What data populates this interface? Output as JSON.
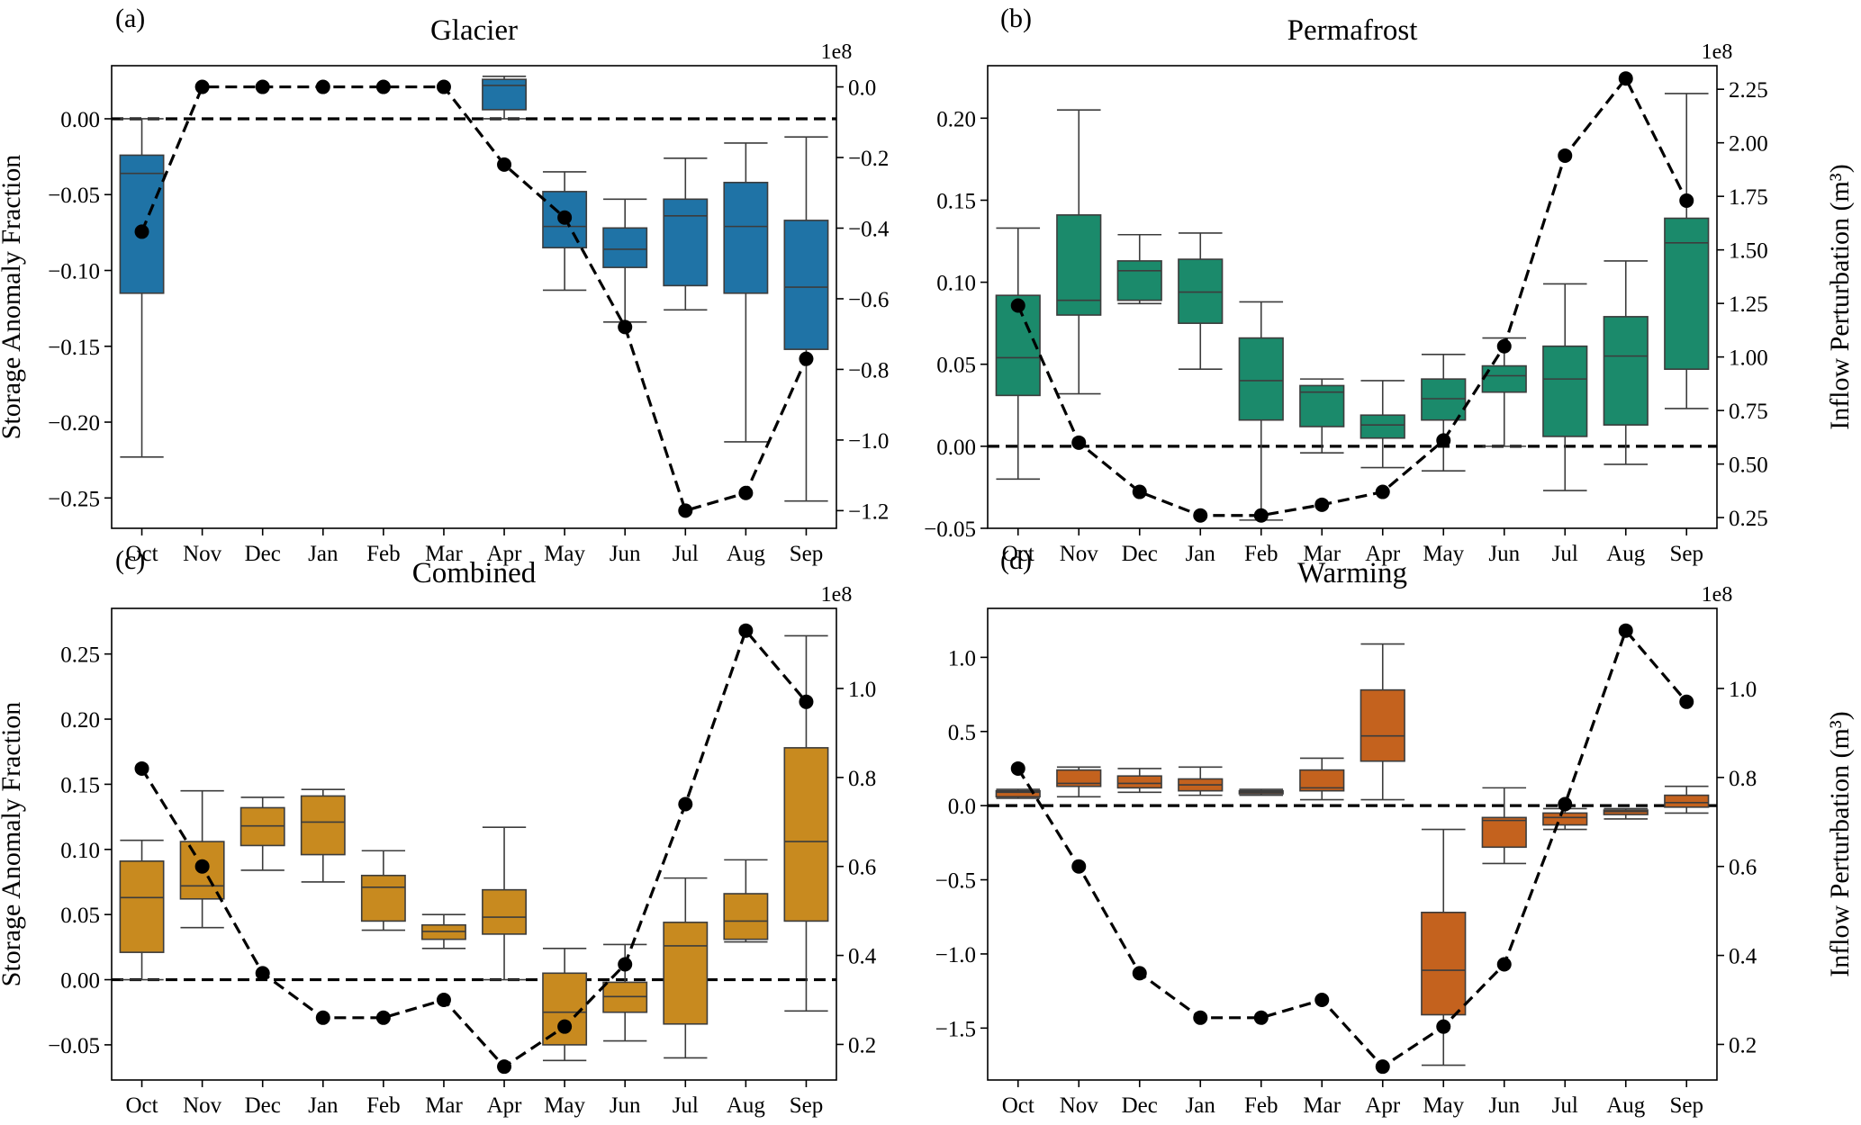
{
  "chart_data": [
    {
      "type": "box+line",
      "panel_label": "(a)",
      "title": "Glacier",
      "ylabel": "Storage Anomaly Fraction",
      "ylabel2": "",
      "secondary_axis_multiplier": "1e8",
      "categories": [
        "Oct",
        "Nov",
        "Dec",
        "Jan",
        "Feb",
        "Mar",
        "Apr",
        "May",
        "Jun",
        "Jul",
        "Aug",
        "Sep"
      ],
      "ylim": [
        -0.27,
        0.035
      ],
      "y_ticks": [
        {
          "value": 0.0,
          "label": "0.00"
        },
        {
          "value": -0.05,
          "label": "−0.05"
        },
        {
          "value": -0.1,
          "label": "−0.10"
        },
        {
          "value": -0.15,
          "label": "−0.15"
        },
        {
          "value": -0.2,
          "label": "−0.20"
        },
        {
          "value": -0.25,
          "label": "−0.25"
        }
      ],
      "y2lim": [
        -1.25,
        0.06
      ],
      "y2_ticks": [
        {
          "value": 0.0,
          "label": "0.0"
        },
        {
          "value": -0.2,
          "label": "−0.2"
        },
        {
          "value": -0.4,
          "label": "−0.4"
        },
        {
          "value": -0.6,
          "label": "−0.6"
        },
        {
          "value": -0.8,
          "label": "−0.8"
        },
        {
          "value": -1.0,
          "label": "−1.0"
        },
        {
          "value": -1.2,
          "label": "−1.2"
        }
      ],
      "reference_line": 0.0,
      "color": "#1f73a6",
      "boxes": [
        {
          "category": "Oct",
          "whislo": -0.223,
          "q1": -0.115,
          "med": -0.036,
          "q3": -0.024,
          "whishi": 0.0
        },
        null,
        null,
        null,
        null,
        null,
        {
          "category": "Apr",
          "whislo": 0.0,
          "q1": 0.006,
          "med": 0.022,
          "q3": 0.026,
          "whishi": 0.028
        },
        {
          "category": "May",
          "whislo": -0.113,
          "q1": -0.085,
          "med": -0.071,
          "q3": -0.048,
          "whishi": -0.035
        },
        {
          "category": "Jun",
          "whislo": -0.134,
          "q1": -0.098,
          "med": -0.086,
          "q3": -0.072,
          "whishi": -0.053
        },
        {
          "category": "Jul",
          "whislo": -0.126,
          "q1": -0.11,
          "med": -0.064,
          "q3": -0.053,
          "whishi": -0.026
        },
        {
          "category": "Aug",
          "whislo": -0.213,
          "q1": -0.115,
          "med": -0.071,
          "q3": -0.042,
          "whishi": -0.016
        },
        {
          "category": "Sep",
          "whislo": -0.252,
          "q1": -0.152,
          "med": -0.111,
          "q3": -0.067,
          "whishi": -0.012
        }
      ],
      "line_values": [
        -0.41,
        0.0,
        0.0,
        0.0,
        0.0,
        0.0,
        -0.22,
        -0.37,
        -0.68,
        -1.2,
        -1.15,
        -0.77
      ]
    },
    {
      "type": "box+line",
      "panel_label": "(b)",
      "title": "Permafrost",
      "ylabel": "",
      "ylabel2": "Inflow Perturbation (m³)",
      "secondary_axis_multiplier": "1e8",
      "categories": [
        "Oct",
        "Nov",
        "Dec",
        "Jan",
        "Feb",
        "Mar",
        "Apr",
        "May",
        "Jun",
        "Jul",
        "Aug",
        "Sep"
      ],
      "ylim": [
        -0.05,
        0.232
      ],
      "y_ticks": [
        {
          "value": -0.05,
          "label": "−0.05"
        },
        {
          "value": 0.0,
          "label": "0.00"
        },
        {
          "value": 0.05,
          "label": "0.05"
        },
        {
          "value": 0.1,
          "label": "0.10"
        },
        {
          "value": 0.15,
          "label": "0.15"
        },
        {
          "value": 0.2,
          "label": "0.20"
        }
      ],
      "y2lim": [
        0.2,
        2.36
      ],
      "y2_ticks": [
        {
          "value": 0.25,
          "label": "0.25"
        },
        {
          "value": 0.5,
          "label": "0.50"
        },
        {
          "value": 0.75,
          "label": "0.75"
        },
        {
          "value": 1.0,
          "label": "1.00"
        },
        {
          "value": 1.25,
          "label": "1.25"
        },
        {
          "value": 1.5,
          "label": "1.50"
        },
        {
          "value": 1.75,
          "label": "1.75"
        },
        {
          "value": 2.0,
          "label": "2.00"
        },
        {
          "value": 2.25,
          "label": "2.25"
        }
      ],
      "reference_line": 0.0,
      "color": "#1b8a6b",
      "boxes": [
        {
          "category": "Oct",
          "whislo": -0.02,
          "q1": 0.031,
          "med": 0.054,
          "q3": 0.092,
          "whishi": 0.133
        },
        {
          "category": "Nov",
          "whislo": 0.032,
          "q1": 0.08,
          "med": 0.089,
          "q3": 0.141,
          "whishi": 0.205
        },
        {
          "category": "Dec",
          "whislo": 0.087,
          "q1": 0.089,
          "med": 0.107,
          "q3": 0.113,
          "whishi": 0.129
        },
        {
          "category": "Jan",
          "whislo": 0.047,
          "q1": 0.075,
          "med": 0.094,
          "q3": 0.114,
          "whishi": 0.13
        },
        {
          "category": "Feb",
          "whislo": -0.045,
          "q1": 0.016,
          "med": 0.04,
          "q3": 0.066,
          "whishi": 0.088
        },
        {
          "category": "Mar",
          "whislo": -0.004,
          "q1": 0.012,
          "med": 0.033,
          "q3": 0.037,
          "whishi": 0.041
        },
        {
          "category": "Apr",
          "whislo": -0.013,
          "q1": 0.005,
          "med": 0.013,
          "q3": 0.019,
          "whishi": 0.04
        },
        {
          "category": "May",
          "whislo": -0.015,
          "q1": 0.016,
          "med": 0.029,
          "q3": 0.041,
          "whishi": 0.056
        },
        {
          "category": "Jun",
          "whislo": 0.0,
          "q1": 0.033,
          "med": 0.043,
          "q3": 0.049,
          "whishi": 0.066
        },
        {
          "category": "Jul",
          "whislo": -0.027,
          "q1": 0.006,
          "med": 0.041,
          "q3": 0.061,
          "whishi": 0.099
        },
        {
          "category": "Aug",
          "whislo": -0.011,
          "q1": 0.013,
          "med": 0.055,
          "q3": 0.079,
          "whishi": 0.113
        },
        {
          "category": "Sep",
          "whislo": 0.023,
          "q1": 0.047,
          "med": 0.124,
          "q3": 0.139,
          "whishi": 0.215
        }
      ],
      "line_values": [
        1.24,
        0.6,
        0.37,
        0.26,
        0.26,
        0.31,
        0.37,
        0.61,
        1.05,
        1.94,
        2.3,
        1.73
      ]
    },
    {
      "type": "box+line",
      "panel_label": "(c)",
      "title": "Combined",
      "ylabel": "Storage Anomaly Fraction",
      "ylabel2": "",
      "secondary_axis_multiplier": "1e8",
      "categories": [
        "Oct",
        "Nov",
        "Dec",
        "Jan",
        "Feb",
        "Mar",
        "Apr",
        "May",
        "Jun",
        "Jul",
        "Aug",
        "Sep"
      ],
      "ylim": [
        -0.077,
        0.285
      ],
      "y_ticks": [
        {
          "value": -0.05,
          "label": "−0.05"
        },
        {
          "value": 0.0,
          "label": "0.00"
        },
        {
          "value": 0.05,
          "label": "0.05"
        },
        {
          "value": 0.1,
          "label": "0.10"
        },
        {
          "value": 0.15,
          "label": "0.15"
        },
        {
          "value": 0.2,
          "label": "0.20"
        },
        {
          "value": 0.25,
          "label": "0.25"
        }
      ],
      "y2lim": [
        0.12,
        1.18
      ],
      "y2_ticks": [
        {
          "value": 0.2,
          "label": "0.2"
        },
        {
          "value": 0.4,
          "label": "0.4"
        },
        {
          "value": 0.6,
          "label": "0.6"
        },
        {
          "value": 0.8,
          "label": "0.8"
        },
        {
          "value": 1.0,
          "label": "1.0"
        }
      ],
      "reference_line": 0.0,
      "color": "#c88a1f",
      "boxes": [
        {
          "category": "Oct",
          "whislo": 0.0,
          "q1": 0.021,
          "med": 0.063,
          "q3": 0.091,
          "whishi": 0.107
        },
        {
          "category": "Nov",
          "whislo": 0.04,
          "q1": 0.062,
          "med": 0.072,
          "q3": 0.106,
          "whishi": 0.145
        },
        {
          "category": "Dec",
          "whislo": 0.084,
          "q1": 0.103,
          "med": 0.118,
          "q3": 0.132,
          "whishi": 0.14
        },
        {
          "category": "Jan",
          "whislo": 0.075,
          "q1": 0.096,
          "med": 0.121,
          "q3": 0.141,
          "whishi": 0.146
        },
        {
          "category": "Feb",
          "whislo": 0.038,
          "q1": 0.045,
          "med": 0.071,
          "q3": 0.08,
          "whishi": 0.099
        },
        {
          "category": "Mar",
          "whislo": 0.024,
          "q1": 0.031,
          "med": 0.037,
          "q3": 0.042,
          "whishi": 0.05
        },
        {
          "category": "Apr",
          "whislo": 0.0,
          "q1": 0.035,
          "med": 0.048,
          "q3": 0.069,
          "whishi": 0.117
        },
        {
          "category": "May",
          "whislo": -0.062,
          "q1": -0.05,
          "med": -0.025,
          "q3": 0.005,
          "whishi": 0.024
        },
        {
          "category": "Jun",
          "whislo": -0.047,
          "q1": -0.025,
          "med": -0.013,
          "q3": -0.002,
          "whishi": 0.027
        },
        {
          "category": "Jul",
          "whislo": -0.06,
          "q1": -0.034,
          "med": 0.026,
          "q3": 0.044,
          "whishi": 0.078
        },
        {
          "category": "Aug",
          "whislo": 0.029,
          "q1": 0.031,
          "med": 0.045,
          "q3": 0.066,
          "whishi": 0.092
        },
        {
          "category": "Sep",
          "whislo": -0.024,
          "q1": 0.045,
          "med": 0.106,
          "q3": 0.178,
          "whishi": 0.264
        }
      ],
      "line_values": [
        0.82,
        0.6,
        0.36,
        0.26,
        0.26,
        0.3,
        0.15,
        0.24,
        0.38,
        0.74,
        1.13,
        0.97
      ]
    },
    {
      "type": "box+line",
      "panel_label": "(d)",
      "title": "Warming",
      "ylabel": "",
      "ylabel2": "Inflow Perturbation (m³)",
      "secondary_axis_multiplier": "1e8",
      "categories": [
        "Oct",
        "Nov",
        "Dec",
        "Jan",
        "Feb",
        "Mar",
        "Apr",
        "May",
        "Jun",
        "Jul",
        "Aug",
        "Sep"
      ],
      "ylim": [
        -1.85,
        1.33
      ],
      "y_ticks": [
        {
          "value": 1.0,
          "label": "1.0"
        },
        {
          "value": 0.5,
          "label": "0.5"
        },
        {
          "value": 0.0,
          "label": "0.0"
        },
        {
          "value": -0.5,
          "label": "−0.5"
        },
        {
          "value": -1.0,
          "label": "−1.0"
        },
        {
          "value": -1.5,
          "label": "−1.5"
        }
      ],
      "y2lim": [
        0.12,
        1.18
      ],
      "y2_ticks": [
        {
          "value": 0.2,
          "label": "0.2"
        },
        {
          "value": 0.4,
          "label": "0.4"
        },
        {
          "value": 0.6,
          "label": "0.6"
        },
        {
          "value": 0.8,
          "label": "0.8"
        },
        {
          "value": 1.0,
          "label": "1.0"
        }
      ],
      "reference_line": 0.0,
      "color": "#c4621e",
      "boxes": [
        {
          "category": "Oct",
          "whislo": 0.05,
          "q1": 0.06,
          "med": 0.09,
          "q3": 0.1,
          "whishi": 0.11
        },
        {
          "category": "Nov",
          "whislo": 0.06,
          "q1": 0.13,
          "med": 0.15,
          "q3": 0.24,
          "whishi": 0.26
        },
        {
          "category": "Dec",
          "whislo": 0.09,
          "q1": 0.12,
          "med": 0.15,
          "q3": 0.2,
          "whishi": 0.25
        },
        {
          "category": "Jan",
          "whislo": 0.07,
          "q1": 0.1,
          "med": 0.14,
          "q3": 0.18,
          "whishi": 0.26
        },
        {
          "category": "Feb",
          "whislo": 0.07,
          "q1": 0.08,
          "med": 0.09,
          "q3": 0.1,
          "whishi": 0.11
        },
        {
          "category": "Mar",
          "whislo": 0.04,
          "q1": 0.1,
          "med": 0.12,
          "q3": 0.24,
          "whishi": 0.32
        },
        {
          "category": "Apr",
          "whislo": 0.04,
          "q1": 0.3,
          "med": 0.47,
          "q3": 0.78,
          "whishi": 1.09
        },
        {
          "category": "May",
          "whislo": -1.75,
          "q1": -1.41,
          "med": -1.11,
          "q3": -0.72,
          "whishi": -0.16
        },
        {
          "category": "Jun",
          "whislo": -0.39,
          "q1": -0.28,
          "med": -0.1,
          "q3": -0.08,
          "whishi": 0.12
        },
        {
          "category": "Jul",
          "whislo": -0.16,
          "q1": -0.13,
          "med": -0.08,
          "q3": -0.05,
          "whishi": -0.02
        },
        {
          "category": "Aug",
          "whislo": -0.09,
          "q1": -0.06,
          "med": -0.04,
          "q3": -0.03,
          "whishi": -0.02
        },
        {
          "category": "Sep",
          "whislo": -0.05,
          "q1": -0.01,
          "med": 0.02,
          "q3": 0.07,
          "whishi": 0.13
        }
      ],
      "line_values": [
        0.82,
        0.6,
        0.36,
        0.26,
        0.26,
        0.3,
        0.15,
        0.24,
        0.38,
        0.74,
        1.13,
        0.97
      ]
    }
  ]
}
